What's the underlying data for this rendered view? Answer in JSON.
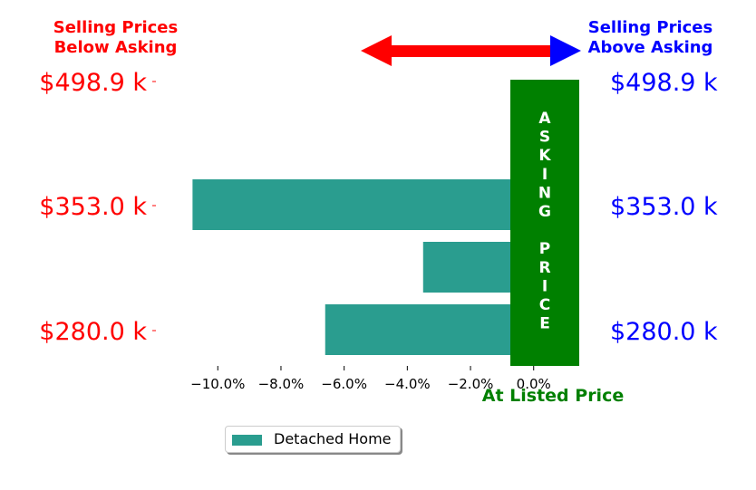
{
  "chart_data": {
    "type": "bar",
    "orientation": "horizontal",
    "series": [
      {
        "name": "Detached Home",
        "color": "#2a9d8f",
        "values": [
          -6.6,
          -3.5,
          -10.8,
          1.2
        ]
      }
    ],
    "xlim": [
      -11.5,
      1.5
    ],
    "xticks": [
      -10,
      -8,
      -6,
      -4,
      -2,
      0
    ],
    "xtick_labels": [
      "−10.0%",
      "−8.0%",
      "−6.0%",
      "−4.0%",
      "−2.0%",
      "0.0%"
    ],
    "left_ytick_labels": [
      "$280.0 k",
      "$353.0 k",
      "$498.9 k"
    ],
    "right_ytick_labels": [
      "$280.0 k",
      "$353.0 k",
      "$498.9 k"
    ],
    "left_label_color": "#ff0000",
    "right_label_color": "#0000ff",
    "asking_band": {
      "color": "#008000",
      "text_top": [
        "A",
        "S",
        "K",
        "I",
        "N",
        "G"
      ],
      "text_bottom": [
        "P",
        "R",
        "I",
        "C",
        "E"
      ]
    },
    "arrow": {
      "left_color": "#ff0000",
      "right_color": "#0000ff"
    },
    "grid": false,
    "legend_position": "bottom-center"
  },
  "headers": {
    "left": "Selling Prices\nBelow Asking",
    "right": "Selling Prices\nAbove Asking",
    "bottom": "At Listed Price"
  },
  "legend": {
    "label": "Detached Home",
    "color": "#2a9d8f"
  }
}
